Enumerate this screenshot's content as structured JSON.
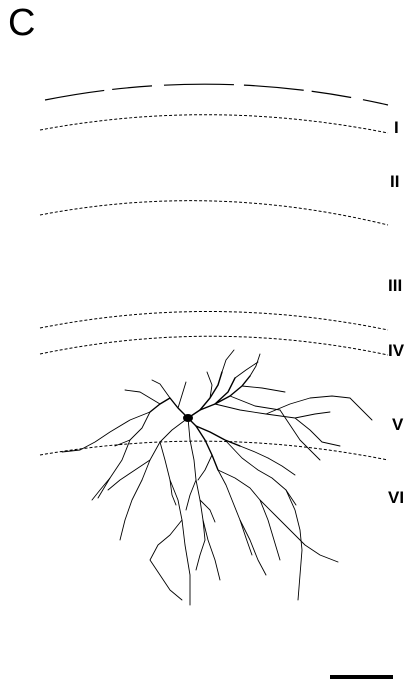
{
  "panel_label": "C",
  "layers": [
    "I",
    "II",
    "III",
    "IV",
    "V",
    "VI"
  ]
}
